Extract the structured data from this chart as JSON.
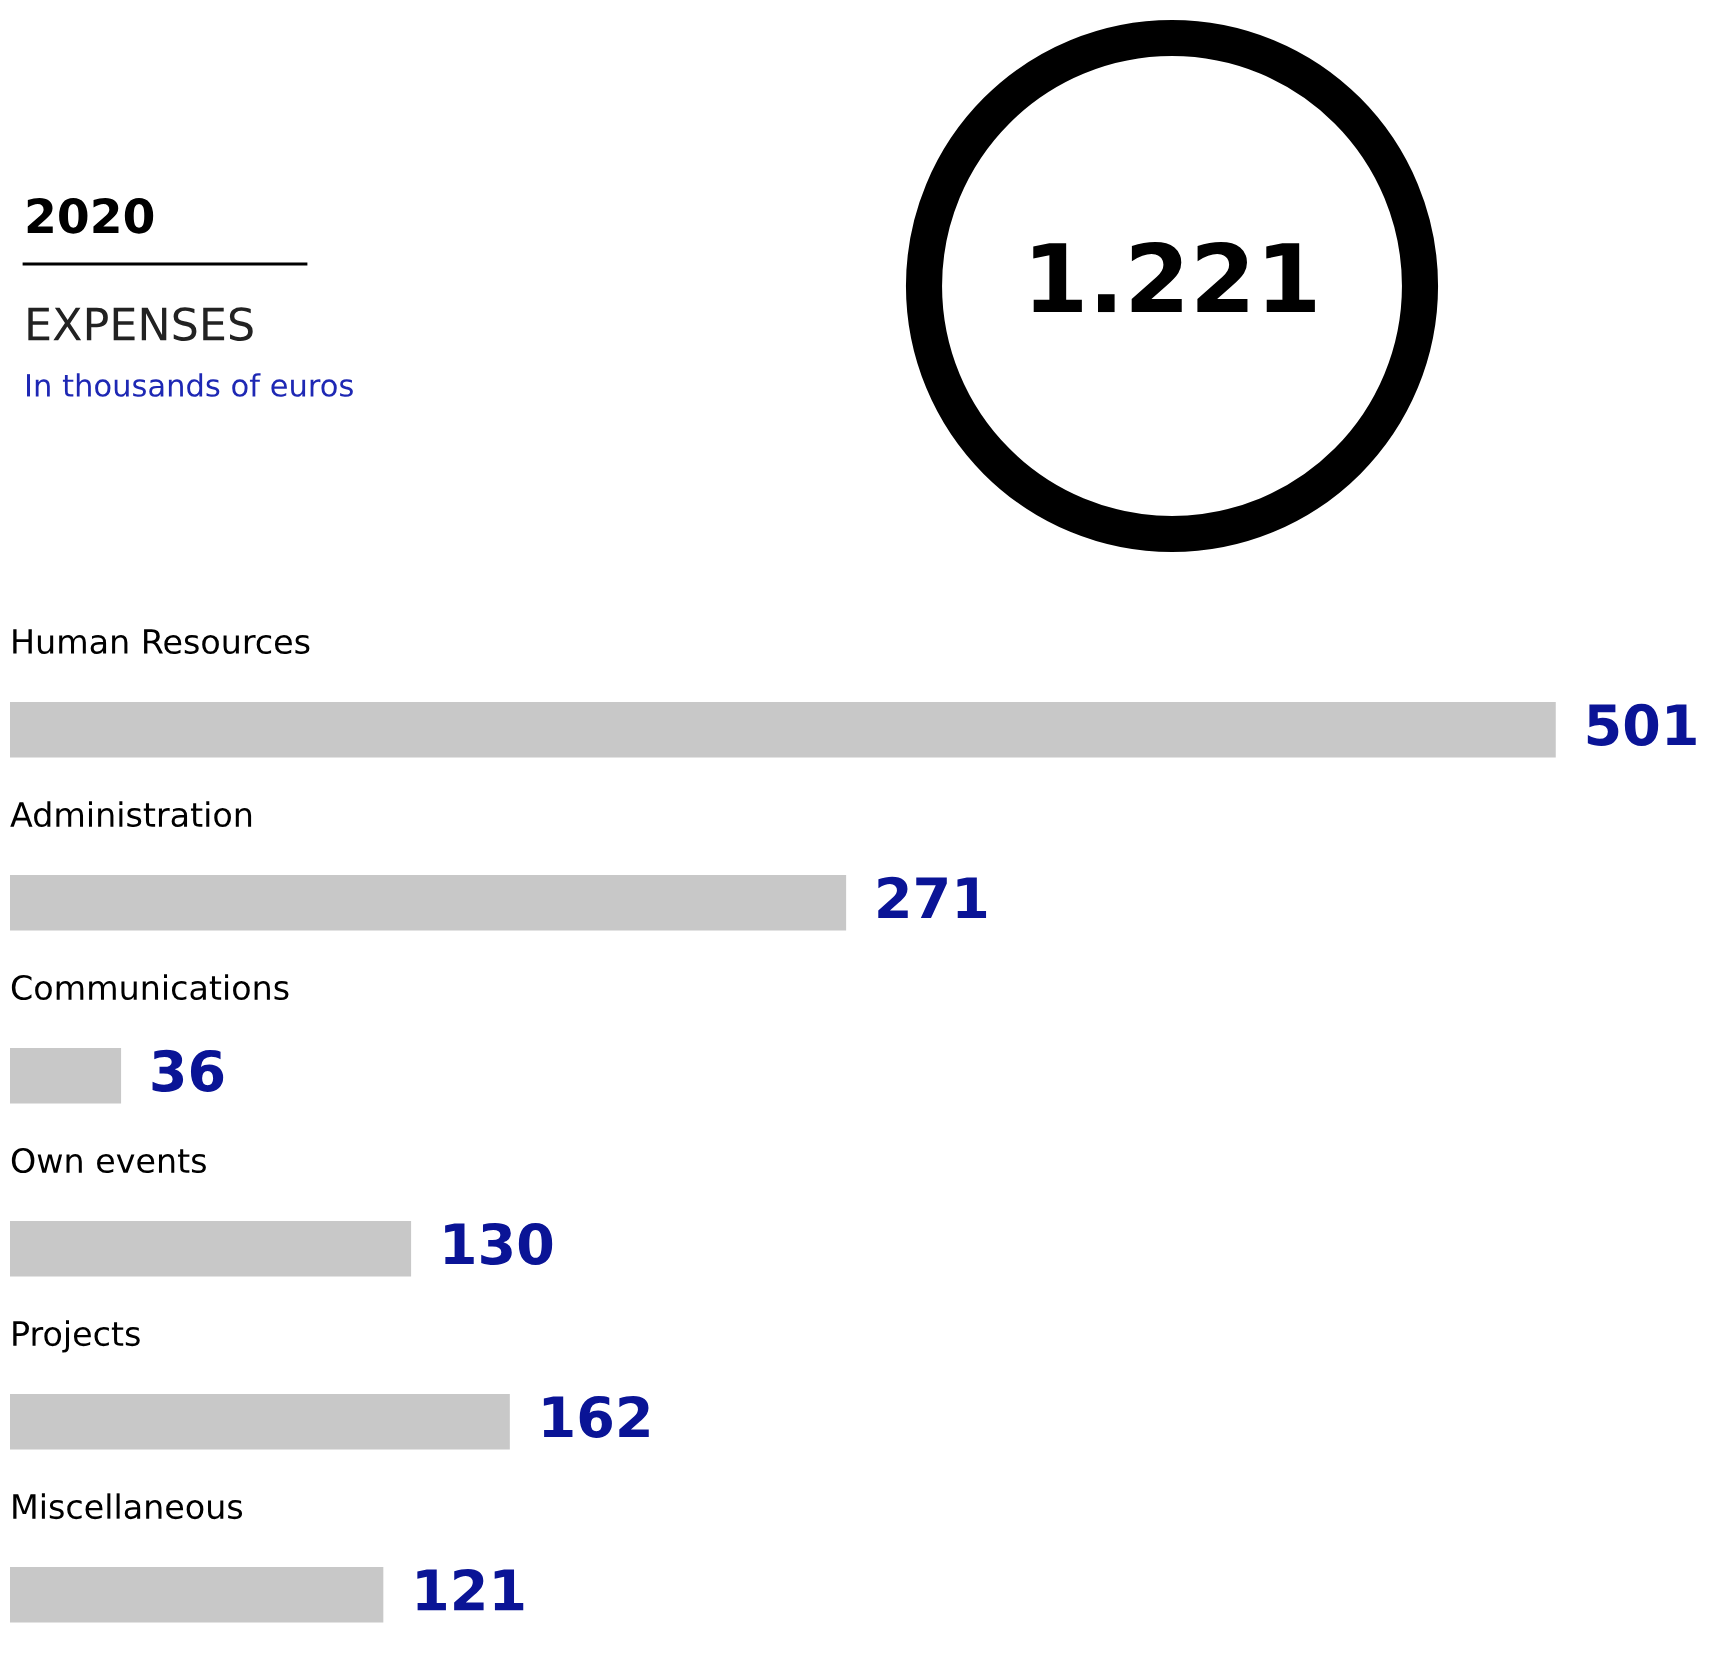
{
  "chart_data": {
    "type": "bar",
    "orientation": "horizontal",
    "title": "2020",
    "subtitle": "EXPENSES",
    "annotations": [
      "In thousands of euros",
      "1.221"
    ],
    "categories": [
      "Human Resources",
      "Administration",
      "Communications",
      "Own events",
      "Projects",
      "Miscellaneous"
    ],
    "values": [
      501,
      271,
      36,
      130,
      162,
      121
    ],
    "color": "#c8c8c8",
    "data_labels": true
  }
}
